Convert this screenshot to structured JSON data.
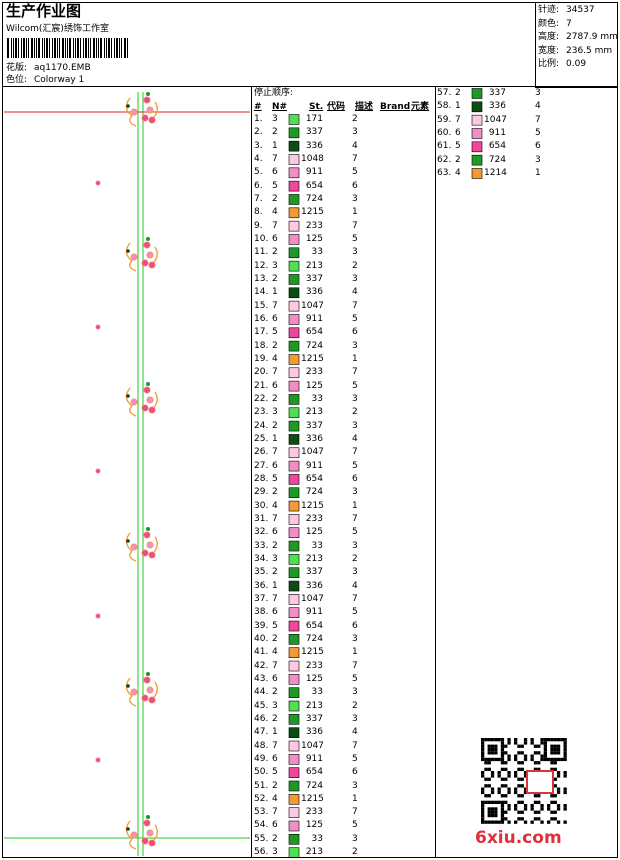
{
  "header": {
    "title": "生产作业图",
    "studio": "Wilcom(汇宸)绣饰工作室",
    "design_label": "花版:",
    "design": "aq1170.EMB",
    "colorway_label": "色位:",
    "colorway": "Colorway 1"
  },
  "stats": [
    {
      "label": "针迹:",
      "value": "34537"
    },
    {
      "label": "颜色:",
      "value": "7"
    },
    {
      "label": "高度:",
      "value": "2787.9 mm"
    },
    {
      "label": "宽度:",
      "value": "236.5 mm"
    },
    {
      "label": "比例:",
      "value": "0.09"
    }
  ],
  "table": {
    "title": "停止顺序:",
    "columns": [
      "#",
      "N#",
      "St.",
      "代码",
      "描述",
      "Brand",
      "元素"
    ],
    "swatch_colors": {
      "1": "#0b4d12",
      "2": "#1e9a24",
      "3": "#4fe04f",
      "4": "#f39a34",
      "5": "#f0479a",
      "6": "#f38dc6",
      "7": "#fcc9e2"
    },
    "rows": [
      [
        "1.",
        "3",
        "171",
        "2"
      ],
      [
        "2.",
        "2",
        "337",
        "3"
      ],
      [
        "3.",
        "1",
        "336",
        "4"
      ],
      [
        "4.",
        "7",
        "1048",
        "7"
      ],
      [
        "5.",
        "6",
        "911",
        "5"
      ],
      [
        "6.",
        "5",
        "654",
        "6"
      ],
      [
        "7.",
        "2",
        "724",
        "3"
      ],
      [
        "8.",
        "4",
        "1215",
        "1"
      ],
      [
        "9.",
        "7",
        "233",
        "7"
      ],
      [
        "10.",
        "6",
        "125",
        "5"
      ],
      [
        "11.",
        "2",
        "33",
        "3"
      ],
      [
        "12.",
        "3",
        "213",
        "2"
      ],
      [
        "13.",
        "2",
        "337",
        "3"
      ],
      [
        "14.",
        "1",
        "336",
        "4"
      ],
      [
        "15.",
        "7",
        "1047",
        "7"
      ],
      [
        "16.",
        "6",
        "911",
        "5"
      ],
      [
        "17.",
        "5",
        "654",
        "6"
      ],
      [
        "18.",
        "2",
        "724",
        "3"
      ],
      [
        "19.",
        "4",
        "1215",
        "1"
      ],
      [
        "20.",
        "7",
        "233",
        "7"
      ],
      [
        "21.",
        "6",
        "125",
        "5"
      ],
      [
        "22.",
        "2",
        "33",
        "3"
      ],
      [
        "23.",
        "3",
        "213",
        "2"
      ],
      [
        "24.",
        "2",
        "337",
        "3"
      ],
      [
        "25.",
        "1",
        "336",
        "4"
      ],
      [
        "26.",
        "7",
        "1047",
        "7"
      ],
      [
        "27.",
        "6",
        "911",
        "5"
      ],
      [
        "28.",
        "5",
        "654",
        "6"
      ],
      [
        "29.",
        "2",
        "724",
        "3"
      ],
      [
        "30.",
        "4",
        "1215",
        "1"
      ],
      [
        "31.",
        "7",
        "233",
        "7"
      ],
      [
        "32.",
        "6",
        "125",
        "5"
      ],
      [
        "33.",
        "2",
        "33",
        "3"
      ],
      [
        "34.",
        "3",
        "213",
        "2"
      ],
      [
        "35.",
        "2",
        "337",
        "3"
      ],
      [
        "36.",
        "1",
        "336",
        "4"
      ],
      [
        "37.",
        "7",
        "1047",
        "7"
      ],
      [
        "38.",
        "6",
        "911",
        "5"
      ],
      [
        "39.",
        "5",
        "654",
        "6"
      ],
      [
        "40.",
        "2",
        "724",
        "3"
      ],
      [
        "41.",
        "4",
        "1215",
        "1"
      ],
      [
        "42.",
        "7",
        "233",
        "7"
      ],
      [
        "43.",
        "6",
        "125",
        "5"
      ],
      [
        "44.",
        "2",
        "33",
        "3"
      ],
      [
        "45.",
        "3",
        "213",
        "2"
      ],
      [
        "46.",
        "2",
        "337",
        "3"
      ],
      [
        "47.",
        "1",
        "336",
        "4"
      ],
      [
        "48.",
        "7",
        "1047",
        "7"
      ],
      [
        "49.",
        "6",
        "911",
        "5"
      ],
      [
        "50.",
        "5",
        "654",
        "6"
      ],
      [
        "51.",
        "2",
        "724",
        "3"
      ],
      [
        "52.",
        "4",
        "1215",
        "1"
      ],
      [
        "53.",
        "7",
        "233",
        "7"
      ],
      [
        "54.",
        "6",
        "125",
        "5"
      ],
      [
        "55.",
        "2",
        "33",
        "3"
      ],
      [
        "56.",
        "3",
        "213",
        "2"
      ],
      [
        "57.",
        "2",
        "337",
        "3"
      ],
      [
        "58.",
        "1",
        "336",
        "4"
      ],
      [
        "59.",
        "7",
        "1047",
        "7"
      ],
      [
        "60.",
        "6",
        "911",
        "5"
      ],
      [
        "61.",
        "5",
        "654",
        "6"
      ],
      [
        "62.",
        "2",
        "724",
        "3"
      ],
      [
        "63.",
        "4",
        "1214",
        "1"
      ]
    ]
  },
  "watermark": "6xiu.com"
}
